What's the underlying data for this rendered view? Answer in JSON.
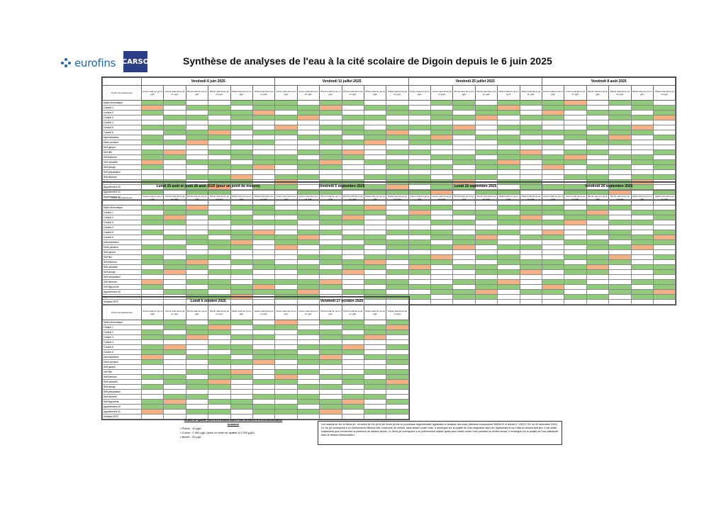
{
  "header": {
    "title": "Synthèse de analyses de l'eau à la cité scolaire de Digoin depuis le 6 juin 2025",
    "brand_primary": "eurofins",
    "brand_secondary": "CARSO"
  },
  "sub_headers": [
    "Cuivre total 1er jet en µg/L",
    "Cuivre total 2ème jet en µg/L",
    "Plomb total 1er jet en µg/L",
    "Plomb total 2ème jet en µg/L",
    "Nickel total 1er jet en µg/L",
    "Nickel total 2ème jet en µg/L"
  ],
  "row_label_header": "Points de prélèvement",
  "rows_a": [
    "Salle informatique",
    "Cuisine 1",
    "Cuisine 2",
    "Cuisine 3",
    "Cuisine 4",
    "Cuisine 5",
    "Cuisine 6",
    "Administration",
    "Demi-pension",
    "Self garçon",
    "Self fille",
    "Self internes",
    "Self vaisselle",
    "Self plonge",
    "Self préparation",
    "Self déchets",
    "Self légumerie",
    "Appartement 10",
    "Appartement 11",
    "Appartement 12"
  ],
  "rows_b": [
    "Salle informatique",
    "Cuisine 1",
    "Cuisine 2",
    "Cuisine 3",
    "Cuisine 4",
    "Cuisine 5",
    "Cuisine 6",
    "Administration",
    "Demi-pension",
    "Self garçon",
    "Self fille",
    "Self internes",
    "Self vaisselle",
    "Self plonge",
    "Self préparation",
    "Self déchets",
    "Self légumerie",
    "Appartement 10",
    "Appartement 11",
    "Vestiaire EPS"
  ],
  "blocks": [
    {
      "date": "Vendredi 6 juin 2025"
    },
    {
      "date": "Vendredi 11 juillet 2025"
    },
    {
      "date": "Vendredi 25 juillet 2025"
    },
    {
      "date": "Vendredi 8 août 2025"
    },
    {
      "date": "Lundi 25 août et jeudi 28 août 2025 (pour un point de mesure)"
    },
    {
      "date": "Vendredi 5 septembre 2025"
    },
    {
      "date": "Lundi 15 septembre 2025"
    },
    {
      "date": "Vendredi 26 septembre 2025"
    },
    {
      "date": "Lundi 6 octobre 2025"
    },
    {
      "date": "Vendredi 17 octobre 2025"
    }
  ],
  "legend": {
    "title": "Seuils de qualité pour les métaux dans l'eau destinée à la consommation humaine",
    "items": [
      "• Plomb : 10 µg/L",
      "• Cuivre : 2 000 µg/L (avec un seuil de qualité à 1 000 µg/L)",
      "• Nickel : 20 µg/L"
    ]
  },
  "note": "Les notions de 1er et 2ème jet : la notion de 1er jet et de 2ème jet est un processus réglementaire applicable à l'analyse des eaux (directive européenne 98/83/CE et décret n° 2022-1721 du 30 décembre 2022). Le 1er jet correspond à un prélèvement effectué dès l'ouverture du robinet, sans laisser couler l'eau. Il renseigne sur la qualité de l'eau stagnante dans les tuyauteries et sur l'état du réseau intérieur. Il est utilisé notamment pour rechercher la présence de métaux lourds. Le 2ème jet correspond à un prélèvement réalisé après avoir laissé couler l'eau pendant un certain temps. Il renseigne sur la qualité de l'eau distribuée dans le réseau d'alimentation.",
  "colors": {
    "ok": "#8fcb7a",
    "warn": "#f5b183",
    "mid": "#fbe59b",
    "brand": "#1c67b3"
  }
}
